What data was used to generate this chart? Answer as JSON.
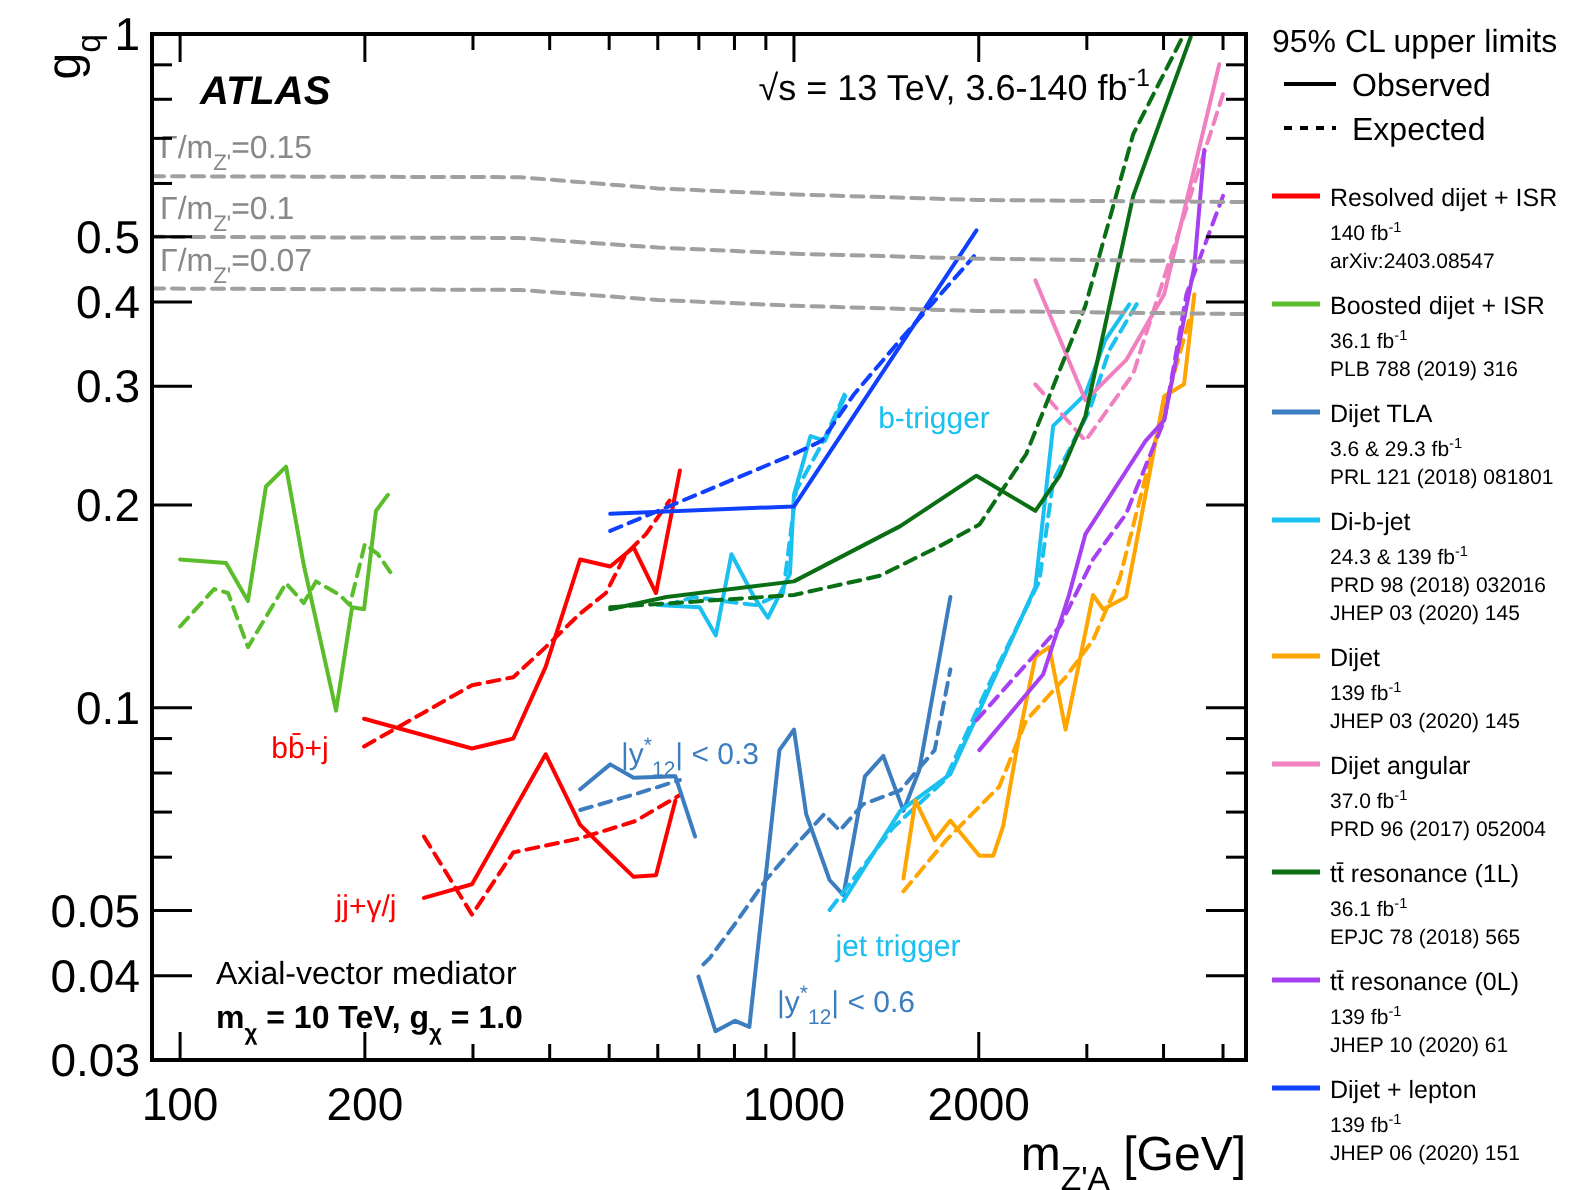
{
  "chart_data": {
    "type": "line",
    "title": "ATLAS",
    "subtitle": "√s = 13 TeV, 3.6-140 fb$^{-1}$",
    "xlabel": "m$_{Z'A}$ [GeV]",
    "ylabel": "g$_{q}$",
    "legend_title": "95% CL upper limits",
    "legend": "right",
    "log": "xy",
    "xlim": [
      90,
      5450
    ],
    "ylim": [
      0.03,
      1
    ],
    "xticks": [
      100,
      200,
      {
        "value": 300,
        "label": null
      },
      {
        "value": 400,
        "label": null
      },
      {
        "value": 500,
        "label": null
      },
      {
        "value": 600,
        "label": null
      },
      {
        "value": 700,
        "label": null
      },
      {
        "value": 800,
        "label": null
      },
      {
        "value": 900,
        "label": null
      },
      1000,
      2000,
      {
        "value": 3000,
        "label": null
      },
      {
        "value": 4000,
        "label": null
      },
      {
        "value": 5000,
        "label": null
      }
    ],
    "yticks": [
      0.03,
      0.04,
      0.05,
      {
        "value": 0.06,
        "label": null
      },
      {
        "value": 0.07,
        "label": null
      },
      {
        "value": 0.08,
        "label": null
      },
      {
        "value": 0.09,
        "label": null
      },
      0.1,
      0.2,
      0.3,
      0.4,
      0.5,
      {
        "value": 0.6,
        "label": null
      },
      {
        "value": 0.7,
        "label": null
      },
      {
        "value": 0.8,
        "label": null
      },
      {
        "value": 0.9,
        "label": null
      },
      1
    ],
    "annotations": [
      "Observed",
      "Expected",
      "Axial-vector mediator",
      "m$_{χ}$ = 10 TeV, g$_{χ}$ = 1.0",
      "bb̄+j",
      "jj+γ/j",
      "|y$^{*}$$_{12}$| < 0.3",
      "|y$^{*}$$_{12}$| < 0.6",
      "b-trigger",
      "jet trigger"
    ],
    "series": [
      {
        "name": "Resolved dijet + ISR\n140 fb$^{-1}$\narXiv:2403.08547",
        "color": "#ff0000",
        "line_style": "solid",
        "x": [
          199.4,
          298.9,
          349,
          394,
          448.5,
          502,
          548,
          596,
          652
        ],
        "values": [
          0.0963,
          0.087,
          0.09,
          0.115,
          0.166,
          0.162,
          0.173,
          0.148,
          0.225
        ]
      },
      {
        "color": "#ff0000",
        "line_style": "dashed",
        "x": [
          199.4,
          298.9,
          349,
          394,
          448.5,
          494,
          532,
          574,
          627
        ],
        "values": [
          0.0876,
          0.108,
          0.111,
          0.123,
          0.138,
          0.148,
          0.169,
          0.181,
          0.203
        ]
      },
      {
        "color": "#ff0000",
        "line_style": "solid",
        "x": [
          249.6,
          298.9,
          394,
          448.5,
          502,
          548,
          596,
          641
        ],
        "values": [
          0.0522,
          0.0547,
          0.0853,
          0.067,
          0.0606,
          0.0561,
          0.0564,
          0.0728
        ]
      },
      {
        "color": "#ff0000",
        "line_style": "dashed",
        "x": [
          249.6,
          298.9,
          349,
          448.5,
          552,
          652
        ],
        "values": [
          0.0644,
          0.0493,
          0.061,
          0.064,
          0.0679,
          0.0742
        ]
      },
      {
        "name": "Boosted dijet + ISR\n36.1 fb$^{-1}$\nPLB 788 (2019) 316",
        "color": "#5bbd2b",
        "line_style": "solid",
        "x": [
          100,
          118.8,
          129,
          138,
          148.8,
          159,
          179.5,
          190.6,
          199.4,
          208.5,
          218
        ],
        "values": [
          0.166,
          0.164,
          0.144,
          0.213,
          0.228,
          0.163,
          0.099,
          0.141,
          0.14,
          0.196,
          0.207
        ]
      },
      {
        "color": "#5bbd2b",
        "line_style": "dashed",
        "x": [
          100,
          113.6,
          119.7,
          129,
          148.8,
          159,
          166.5,
          182,
          189,
          200,
          210,
          220
        ],
        "values": [
          0.132,
          0.15,
          0.148,
          0.123,
          0.153,
          0.143,
          0.154,
          0.147,
          0.142,
          0.175,
          0.169,
          0.159
        ]
      },
      {
        "name": "Dijet TLA\n3.6 & 29.3 fb$^{-1}$\nPRL 121 (2018) 081801",
        "color": "#3c7dbf",
        "line_style": "solid",
        "x": [
          448.5,
          502,
          548,
          641,
          690
        ],
        "values": [
          0.0757,
          0.0824,
          0.0787,
          0.0791,
          0.0644
        ]
      },
      {
        "color": "#3c7dbf",
        "line_style": "dashed",
        "x": [
          448.5,
          548,
          652
        ],
        "values": [
          0.0705,
          0.0743,
          0.0781
        ]
      },
      {
        "color": "#3c7dbf",
        "line_style": "solid",
        "x": [
          699,
          745,
          802,
          846,
          947,
          1000,
          1047,
          1143,
          1204,
          1305,
          1398,
          1508,
          1600,
          1798
        ],
        "values": [
          0.0399,
          0.0331,
          0.0343,
          0.0336,
          0.0865,
          0.0928,
          0.0695,
          0.0555,
          0.0527,
          0.0791,
          0.0848,
          0.0703,
          0.0808,
          0.146
        ]
      },
      {
        "color": "#3c7dbf",
        "line_style": "dashed",
        "x": [
          712,
          729,
          802,
          900,
          1024,
          1120,
          1187,
          1296,
          1490,
          1695,
          1798
        ],
        "values": [
          0.0416,
          0.0425,
          0.0478,
          0.0555,
          0.0636,
          0.0695,
          0.0657,
          0.0719,
          0.0754,
          0.0865,
          0.114
        ]
      },
      {
        "name": "Di-b-jet\n24.3 & 139 fb$^{-1}$\nPRD 98 (2018) 032016\nJHEP 03 (2020) 145",
        "color": "#19c0f0",
        "line_style": "solid",
        "x": [
          600,
          702,
          746,
          791,
          861,
          907,
          985,
          1000,
          1064,
          1123,
          1212
        ],
        "values": [
          0.142,
          0.141,
          0.128,
          0.169,
          0.146,
          0.136,
          0.158,
          0.207,
          0.253,
          0.249,
          0.29
        ]
      },
      {
        "color": "#19c0f0",
        "line_style": "dashed",
        "x": [
          619,
          688,
          768,
          867,
          960,
          1008,
          1110,
          1212
        ],
        "values": [
          0.142,
          0.146,
          0.144,
          0.142,
          0.148,
          0.21,
          0.246,
          0.293
        ]
      },
      {
        "color": "#19c0f0",
        "line_style": "solid",
        "x": [
          1204,
          1490,
          1798,
          2005,
          2473,
          2644,
          2984,
          3213,
          3518
        ],
        "values": [
          0.0517,
          0.0703,
          0.0797,
          0.099,
          0.151,
          0.262,
          0.292,
          0.351,
          0.397
        ]
      },
      {
        "color": "#19c0f0",
        "line_style": "dashed",
        "x": [
          1143,
          1451,
          1764,
          2085,
          2510,
          2644,
          3033,
          3262,
          3651
        ],
        "values": [
          0.0501,
          0.0664,
          0.0782,
          0.109,
          0.154,
          0.217,
          0.277,
          0.339,
          0.403
        ]
      },
      {
        "name": "Dijet\n139 fb$^{-1}$\nJHEP 03 (2020) 145",
        "color": "#ffa500",
        "line_style": "solid",
        "x": [
          1508,
          1577,
          1695,
          1798,
          2005,
          2112,
          2192,
          2330,
          2473,
          2606,
          2770,
          3070,
          3190,
          3476,
          4010,
          4320,
          4490
        ],
        "values": [
          0.0558,
          0.0728,
          0.0636,
          0.068,
          0.0603,
          0.0603,
          0.0667,
          0.0914,
          0.119,
          0.123,
          0.0928,
          0.147,
          0.14,
          0.146,
          0.29,
          0.302,
          0.411
        ]
      },
      {
        "color": "#ffa500",
        "line_style": "dashed",
        "x": [
          1508,
          1770,
          2160,
          2390,
          2770,
          3070,
          3390,
          3800,
          4430
        ],
        "values": [
          0.0534,
          0.0636,
          0.0764,
          0.0958,
          0.111,
          0.126,
          0.155,
          0.233,
          0.384
        ]
      },
      {
        "name": "Dijet angular\n37.0 fb$^{-1}$\nPRD 96 (2017) 052004",
        "color": "#f080c0",
        "line_style": "solid",
        "x": [
          2473,
          2984,
          3476,
          4010,
          4930
        ],
        "values": [
          0.431,
          0.286,
          0.328,
          0.411,
          0.902
        ]
      },
      {
        "color": "#f080c0",
        "line_style": "dashed",
        "x": [
          2473,
          2984,
          3570,
          5000
        ],
        "values": [
          0.302,
          0.249,
          0.313,
          0.814
        ]
      },
      {
        "name": "tt̄ resonance (1L)\n36.1 fb$^{-1}$\nEPJC 78 (2018) 565",
        "color": "#0a6e14",
        "line_style": "solid",
        "x": [
          502,
          620,
          1000,
          1490,
          1983,
          2473,
          2710,
          2984,
          3570,
          4430
        ],
        "values": [
          0.14,
          0.146,
          0.154,
          0.186,
          0.221,
          0.196,
          0.221,
          0.271,
          0.575,
          0.99
        ]
      },
      {
        "color": "#0a6e14",
        "line_style": "dashed",
        "x": [
          502,
          1000,
          1381,
          1733,
          2005,
          2390,
          2984,
          3570,
          4320
        ],
        "values": [
          0.141,
          0.147,
          0.157,
          0.174,
          0.187,
          0.238,
          0.395,
          0.71,
          1.0
        ]
      },
      {
        "name": "tt̄ resonance (0L)\n139 fb$^{-1}$\nJHEP 10 (2020) 61",
        "color": "#a640f0",
        "line_style": "solid",
        "x": [
          2005,
          2546,
          2800,
          2984,
          3740,
          4010,
          4490,
          4660
        ],
        "values": [
          0.0865,
          0.112,
          0.146,
          0.181,
          0.249,
          0.267,
          0.452,
          0.673
        ]
      },
      {
        "color": "#a640f0",
        "line_style": "dashed",
        "x": [
          1983,
          2710,
          3070,
          3476,
          4010,
          4360,
          5000
        ],
        "values": [
          0.0958,
          0.132,
          0.166,
          0.194,
          0.267,
          0.411,
          0.575
        ]
      },
      {
        "name": "Dijet + lepton\n139 fb$^{-1}$\nJHEP 06 (2020) 151",
        "color": "#1040ff",
        "line_style": "solid",
        "x": [
          502,
          1000,
          1983
        ],
        "values": [
          0.194,
          0.199,
          0.511
        ]
      },
      {
        "color": "#1040ff",
        "line_style": "dashed",
        "x": [
          502,
          1000,
          1110,
          1253,
          1508,
          1965
        ],
        "values": [
          0.183,
          0.238,
          0.249,
          0.292,
          0.356,
          0.468
        ]
      },
      {
        "name": "Γ/m$_{Z'}$=0.15",
        "color": "#a0a0a0",
        "line_style": "dashed",
        "x": [
          90,
          358,
          600,
          1000,
          2000,
          5450
        ],
        "values": [
          0.615,
          0.613,
          0.59,
          0.578,
          0.567,
          0.563
        ]
      },
      {
        "name": "Γ/m$_{Z'}$=0.1",
        "color": "#a0a0a0",
        "line_style": "dashed",
        "x": [
          90,
          358,
          600,
          1000,
          2000,
          5450
        ],
        "values": [
          0.5,
          0.498,
          0.482,
          0.472,
          0.464,
          0.459
        ]
      },
      {
        "name": "Γ/m$_{Z'}$=0.07",
        "color": "#a0a0a0",
        "line_style": "dashed",
        "x": [
          90,
          358,
          600,
          1000,
          2000,
          5450
        ],
        "values": [
          0.419,
          0.417,
          0.403,
          0.395,
          0.388,
          0.384
        ]
      }
    ]
  }
}
